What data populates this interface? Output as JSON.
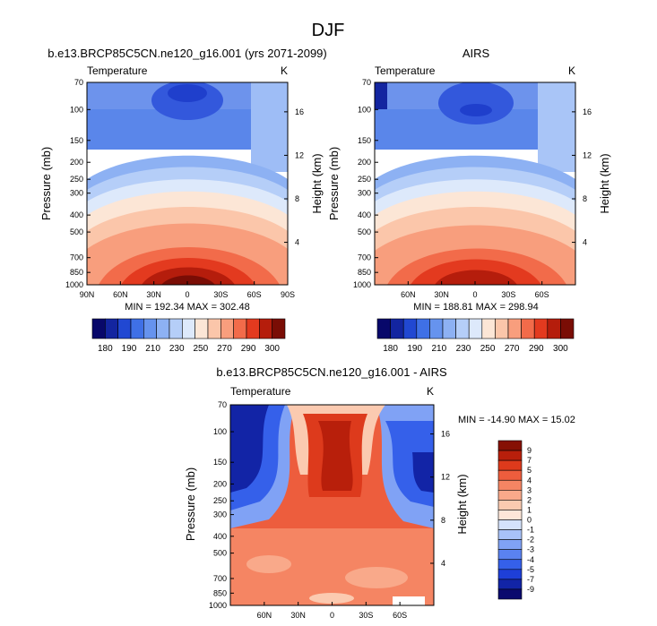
{
  "page_title": "DJF",
  "chart_data": [
    {
      "type": "heatmap",
      "title": "b.e13.BRCP85C5CN.ne120_g16.001 (yrs 2071-2099)",
      "left_label": "Temperature",
      "right_label": "K",
      "ylabel": "Pressure (mb)",
      "y2label": "Height (km)",
      "pressure_ticks": [
        70,
        100,
        150,
        200,
        250,
        300,
        400,
        500,
        700,
        850,
        1000
      ],
      "height_ticks": [
        "4",
        "8",
        "12",
        "16"
      ],
      "height_values": [
        4,
        8,
        12,
        16
      ],
      "x_ticks": [
        "90N",
        "60N",
        "30N",
        "0",
        "30S",
        "60S",
        "90S"
      ],
      "x_values": [
        90,
        60,
        30,
        0,
        -30,
        -60,
        -90
      ],
      "xlim": [
        90,
        -90
      ],
      "ylim": [
        1000,
        70
      ],
      "min_max": "MIN = 192.34   MAX = 302.48",
      "stats": {
        "min": 192.34,
        "max": 302.48
      },
      "colorbar": {
        "levels": [
          180,
          190,
          200,
          210,
          220,
          230,
          240,
          250,
          260,
          270,
          280,
          290,
          300
        ],
        "labels": [
          "180",
          "190",
          "210",
          "230",
          "250",
          "270",
          "290",
          "300"
        ],
        "colors": [
          "#08086a",
          "#1325a0",
          "#2148d2",
          "#3f70e6",
          "#6693ee",
          "#8db1f3",
          "#b5cef8",
          "#dde9fb",
          "#fce6d6",
          "#fbc6aa",
          "#f89e7d",
          "#f26b4a",
          "#e33a1f",
          "#b51d0c",
          "#7a0d05"
        ]
      }
    },
    {
      "type": "heatmap",
      "title": "AIRS",
      "left_label": "Temperature",
      "right_label": "K",
      "ylabel": "Pressure (mb)",
      "y2label": "Height (km)",
      "pressure_ticks": [
        70,
        100,
        150,
        200,
        250,
        300,
        400,
        500,
        700,
        850,
        1000
      ],
      "height_ticks": [
        "4",
        "8",
        "12",
        "16"
      ],
      "height_values": [
        4,
        8,
        12,
        16
      ],
      "x_ticks": [
        "60N",
        "30N",
        "0",
        "30S",
        "60S"
      ],
      "x_values": [
        60,
        30,
        0,
        -30,
        -60
      ],
      "xlim": [
        90,
        -90
      ],
      "ylim": [
        1000,
        70
      ],
      "min_max": "MIN = 188.81   MAX = 298.94",
      "stats": {
        "min": 188.81,
        "max": 298.94
      },
      "colorbar": {
        "levels": [
          180,
          190,
          200,
          210,
          220,
          230,
          240,
          250,
          260,
          270,
          280,
          290,
          300
        ],
        "labels": [
          "180",
          "190",
          "210",
          "230",
          "250",
          "270",
          "290",
          "300"
        ],
        "colors": [
          "#08086a",
          "#1325a0",
          "#2148d2",
          "#3f70e6",
          "#6693ee",
          "#8db1f3",
          "#b5cef8",
          "#dde9fb",
          "#fce6d6",
          "#fbc6aa",
          "#f89e7d",
          "#f26b4a",
          "#e33a1f",
          "#b51d0c",
          "#7a0d05"
        ]
      }
    },
    {
      "type": "heatmap",
      "title": "b.e13.BRCP85C5CN.ne120_g16.001 - AIRS",
      "left_label": "Temperature",
      "right_label": "K",
      "ylabel": "Pressure (mb)",
      "y2label": "Height (km)",
      "pressure_ticks": [
        70,
        100,
        150,
        200,
        250,
        300,
        400,
        500,
        700,
        850,
        1000
      ],
      "height_ticks": [
        "4",
        "8",
        "12",
        "16"
      ],
      "height_values": [
        4,
        8,
        12,
        16
      ],
      "x_ticks": [
        "60N",
        "30N",
        "0",
        "30S",
        "60S"
      ],
      "x_values": [
        60,
        30,
        0,
        -30,
        -60
      ],
      "xlim": [
        90,
        -90
      ],
      "ylim": [
        1000,
        70
      ],
      "min_max": "MIN = -14.90  MAX = 15.02",
      "stats": {
        "min": -14.9,
        "max": 15.02
      },
      "colorbar": {
        "levels": [
          -9,
          -7,
          -5,
          -4,
          -3,
          -2,
          -1,
          0,
          1,
          2,
          3,
          4,
          5,
          7,
          9
        ],
        "labels": [
          "9",
          "7",
          "5",
          "4",
          "3",
          "2",
          "1",
          "0",
          "-1",
          "-2",
          "-3",
          "-4",
          "-5",
          "-7",
          "-9"
        ],
        "colors": [
          "#0a0a6e",
          "#1224a6",
          "#1e3fd8",
          "#3560ea",
          "#5a82f0",
          "#80a2f5",
          "#a8c2f9",
          "#d4e2fb",
          "#fde6d8",
          "#fbcab0",
          "#f9a98a",
          "#f58563",
          "#ed5d3d",
          "#dd3a1c",
          "#b81f0b",
          "#861004"
        ]
      }
    }
  ]
}
